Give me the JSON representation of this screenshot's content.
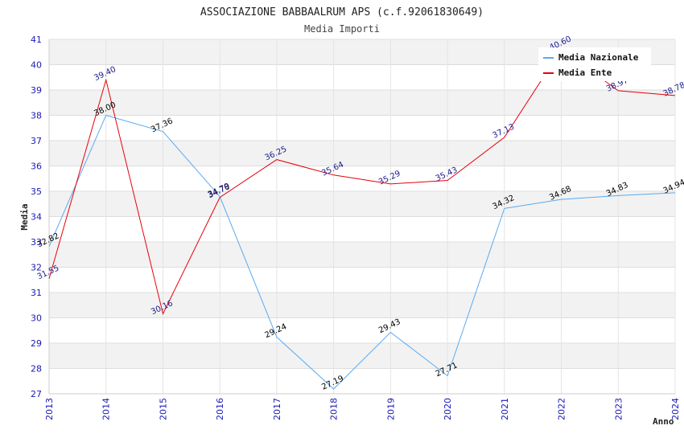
{
  "chart_data": {
    "type": "line",
    "title": "ASSOCIAZIONE BABBAALRUM APS (c.f.92061830649)",
    "subtitle": "Media Importi",
    "xlabel": "Anno",
    "ylabel": "Media",
    "ylim": [
      27,
      41
    ],
    "yticks": [
      27,
      28,
      29,
      30,
      31,
      32,
      33,
      34,
      35,
      36,
      37,
      38,
      39,
      40,
      41
    ],
    "categories": [
      "2013",
      "2014",
      "2015",
      "2016",
      "2017",
      "2018",
      "2019",
      "2020",
      "2021",
      "2022",
      "2023",
      "2024"
    ],
    "grid": true,
    "legend_position": "top-right",
    "series": [
      {
        "name": "Media Nazionale",
        "color": "#5aaaf0",
        "label_color": "#000000",
        "values": [
          32.82,
          38.0,
          37.36,
          34.79,
          29.24,
          27.19,
          29.43,
          27.71,
          34.32,
          34.68,
          34.83,
          34.94
        ],
        "labels": [
          "32.82",
          "38.00",
          "37.36",
          "34.79",
          "29.24",
          "27.19",
          "29.43",
          "27.71",
          "34.32",
          "34.68",
          "34.83",
          "34.94"
        ]
      },
      {
        "name": "Media Ente",
        "color": "#e8000b",
        "label_color": "#1a1a8c",
        "values": [
          31.55,
          39.4,
          30.16,
          34.76,
          36.25,
          35.64,
          35.29,
          35.43,
          37.13,
          40.6,
          38.97,
          38.78
        ],
        "labels": [
          "31.55",
          "39.40",
          "30.16",
          "34.76",
          "36.25",
          "35.64",
          "35.29",
          "35.43",
          "37.13",
          "40.60",
          "38.97",
          "38.78"
        ]
      }
    ]
  }
}
